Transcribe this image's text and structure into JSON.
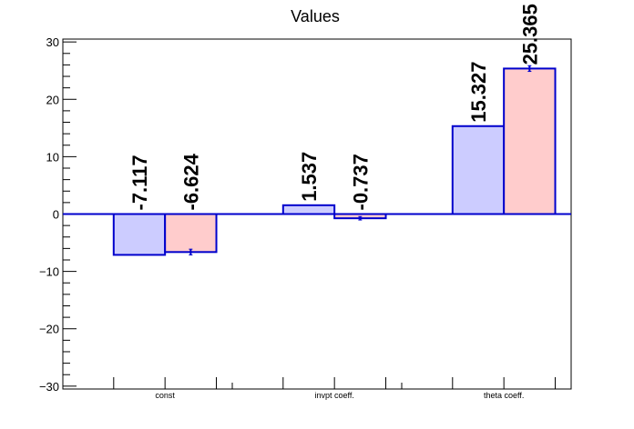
{
  "chart_data": {
    "type": "bar",
    "title": "Values",
    "xlabel": "",
    "ylabel": "",
    "categories": [
      "const",
      "invpt coeff.",
      "theta coeff."
    ],
    "series": [
      {
        "values": [
          -7.117,
          1.537,
          15.327
        ],
        "errors": [
          0,
          0,
          0
        ],
        "color": "#ccccff",
        "edge": "#0000cc"
      },
      {
        "values": [
          -6.624,
          -0.737,
          25.365
        ],
        "errors": [
          0.5,
          0.3,
          0.5
        ],
        "color": "#ffcccc",
        "edge": "#0000cc"
      }
    ],
    "data_labels": [
      [
        "-7.117",
        "1.537",
        "15.327"
      ],
      [
        "-6.624",
        "-0.737",
        "25.365"
      ]
    ],
    "ylim": [
      -30.5,
      30.5
    ],
    "yticks": [
      -30,
      -20,
      -10,
      0,
      10,
      20,
      30
    ],
    "ytick_labels": [
      "−30",
      "−20",
      "−10",
      "0",
      "10",
      "20",
      "30"
    ],
    "grid": false,
    "zero_line_color": "#0000cc"
  }
}
